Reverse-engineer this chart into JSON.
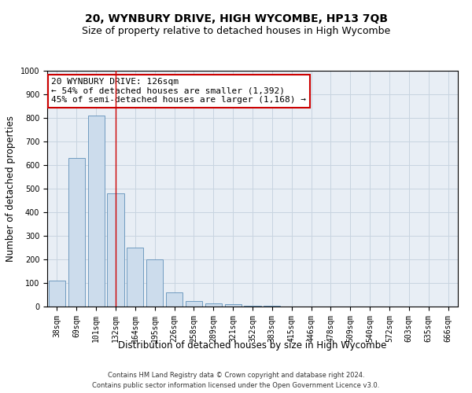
{
  "title": "20, WYNBURY DRIVE, HIGH WYCOMBE, HP13 7QB",
  "subtitle": "Size of property relative to detached houses in High Wycombe",
  "xlabel": "Distribution of detached houses by size in High Wycombe",
  "ylabel": "Number of detached properties",
  "footer_line1": "Contains HM Land Registry data © Crown copyright and database right 2024.",
  "footer_line2": "Contains public sector information licensed under the Open Government Licence v3.0.",
  "categories": [
    "38sqm",
    "69sqm",
    "101sqm",
    "132sqm",
    "164sqm",
    "195sqm",
    "226sqm",
    "258sqm",
    "289sqm",
    "321sqm",
    "352sqm",
    "383sqm",
    "415sqm",
    "446sqm",
    "478sqm",
    "509sqm",
    "540sqm",
    "572sqm",
    "603sqm",
    "635sqm",
    "666sqm"
  ],
  "values": [
    110,
    630,
    810,
    480,
    250,
    200,
    60,
    25,
    15,
    10,
    5,
    3,
    0,
    0,
    0,
    0,
    0,
    0,
    0,
    0,
    0
  ],
  "bar_color": "#ccdcec",
  "bar_edge_color": "#6090b8",
  "grid_color": "#c8d4e0",
  "background_color": "#e8eef5",
  "ylim": [
    0,
    1000
  ],
  "yticks": [
    0,
    100,
    200,
    300,
    400,
    500,
    600,
    700,
    800,
    900,
    1000
  ],
  "red_line_x": 3,
  "annotation_line1": "20 WYNBURY DRIVE: 126sqm",
  "annotation_line2": "← 54% of detached houses are smaller (1,392)",
  "annotation_line3": "45% of semi-detached houses are larger (1,168) →",
  "annotation_box_color": "#ffffff",
  "annotation_border_color": "#cc0000",
  "title_fontsize": 10,
  "subtitle_fontsize": 9,
  "tick_fontsize": 7,
  "axis_label_fontsize": 8.5,
  "annotation_fontsize": 8,
  "footer_fontsize": 6
}
